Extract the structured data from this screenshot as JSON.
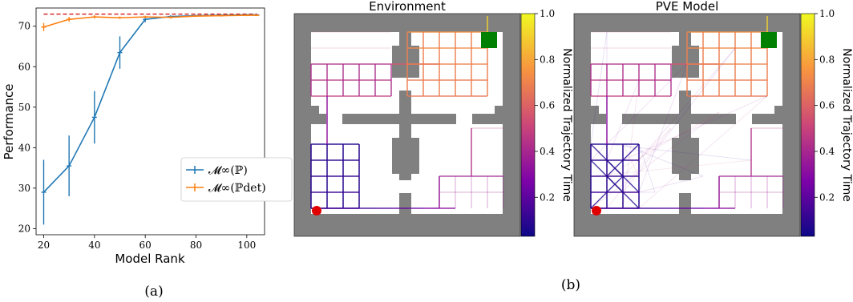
{
  "panel_labels": {
    "a": "(a)",
    "b": "(b)"
  },
  "chart_data": [
    {
      "type": "line",
      "xlabel": "Model Rank",
      "ylabel": "Performance",
      "xlim": [
        17,
        107
      ],
      "ylim": [
        18.5,
        74.5
      ],
      "xticks": [
        20,
        40,
        60,
        80,
        100
      ],
      "yticks": [
        20,
        30,
        40,
        50,
        60,
        70
      ],
      "grid": false,
      "legend_position": "center-right",
      "reference_line": {
        "y": 73,
        "color": "#d62728",
        "style": "dashed"
      },
      "series": [
        {
          "name": "𝓜∞(ℙ)",
          "color": "#1f77b4",
          "x": [
            20,
            30,
            40,
            50,
            60,
            70,
            80,
            90,
            100,
            104
          ],
          "y": [
            29.0,
            35.5,
            47.5,
            63.5,
            71.7,
            72.4,
            72.6,
            72.7,
            72.8,
            72.8
          ],
          "err": [
            8.0,
            7.5,
            6.5,
            4.0,
            0.7,
            0.3,
            0.2,
            0.2,
            0.2,
            0.2
          ]
        },
        {
          "name": "𝓜∞(ℙdet)",
          "color": "#ff7f0e",
          "x": [
            20,
            30,
            40,
            50,
            60,
            70,
            80,
            90,
            100,
            104
          ],
          "y": [
            69.8,
            71.7,
            72.3,
            72.1,
            72.3,
            72.2,
            72.5,
            72.6,
            72.7,
            72.7
          ],
          "err": [
            1.0,
            0.6,
            0.4,
            0.3,
            0.3,
            0.3,
            0.2,
            0.2,
            0.2,
            0.2
          ]
        }
      ]
    },
    {
      "type": "heatmap",
      "title": "Environment",
      "colorbar_label": "Normalized Trajectory Time",
      "colorbar_ticks": [
        "0.2",
        "0.4",
        "0.6",
        "0.8",
        "1.0"
      ]
    },
    {
      "type": "heatmap",
      "title": "PVE Model",
      "colorbar_label": "Normalized Trajectory Time",
      "colorbar_ticks": [
        "0.2",
        "0.4",
        "0.6",
        "0.8",
        "1.0"
      ]
    }
  ]
}
